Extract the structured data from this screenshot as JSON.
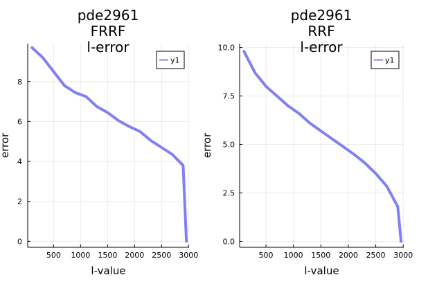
{
  "chart_data": [
    {
      "type": "line",
      "title": [
        "pde2961",
        "FRRF",
        "l-error"
      ],
      "xlabel": "l-value",
      "ylabel": "error",
      "xlim": [
        20,
        3010
      ],
      "ylim": [
        -0.3,
        9.9
      ],
      "xticks": [
        500,
        1000,
        1500,
        2000,
        2500,
        3000
      ],
      "xtick_labels": [
        "500",
        "1000",
        "1500",
        "2000",
        "2500",
        "3000"
      ],
      "yticks": [
        0,
        2,
        4,
        6,
        8
      ],
      "ytick_labels": [
        "0",
        "2",
        "4",
        "6",
        "8"
      ],
      "grid": true,
      "legend": "top-right",
      "series": [
        {
          "name": "y1",
          "color": "#8080f2",
          "x": [
            100,
            300,
            500,
            700,
            900,
            1100,
            1300,
            1500,
            1700,
            1900,
            2100,
            2300,
            2500,
            2700,
            2900,
            2961
          ],
          "y": [
            9.7,
            9.2,
            8.5,
            7.8,
            7.45,
            7.25,
            6.75,
            6.45,
            6.05,
            5.75,
            5.5,
            5.05,
            4.7,
            4.35,
            3.8,
            0
          ]
        }
      ]
    },
    {
      "type": "line",
      "title": [
        "pde2961",
        "RRF",
        "l-error"
      ],
      "xlabel": "l-value",
      "ylabel": "error",
      "xlim": [
        20,
        3010
      ],
      "ylim": [
        -0.3,
        10.2
      ],
      "xticks": [
        500,
        1000,
        1500,
        2000,
        2500,
        3000
      ],
      "xtick_labels": [
        "500",
        "1000",
        "1500",
        "2000",
        "2500",
        "3000"
      ],
      "yticks": [
        0,
        2.5,
        5,
        7.5,
        10
      ],
      "ytick_labels": [
        "0.0",
        "2.5",
        "5.0",
        "7.5",
        "10.0"
      ],
      "grid": true,
      "legend": "top-right",
      "series": [
        {
          "name": "y1",
          "color": "#8080f2",
          "x": [
            100,
            300,
            500,
            700,
            900,
            1100,
            1300,
            1500,
            1700,
            1900,
            2100,
            2300,
            2500,
            2700,
            2900,
            2961
          ],
          "y": [
            9.8,
            8.7,
            8.0,
            7.5,
            7.0,
            6.6,
            6.1,
            5.7,
            5.3,
            4.9,
            4.5,
            4.05,
            3.5,
            2.85,
            1.8,
            0
          ]
        }
      ]
    }
  ]
}
